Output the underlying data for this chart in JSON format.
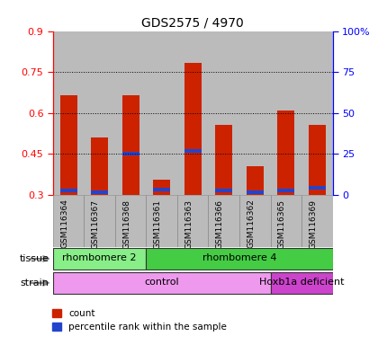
{
  "title": "GDS2575 / 4970",
  "samples": [
    "GSM116364",
    "GSM116367",
    "GSM116368",
    "GSM116361",
    "GSM116363",
    "GSM116366",
    "GSM116362",
    "GSM116365",
    "GSM116369"
  ],
  "red_values": [
    0.665,
    0.51,
    0.665,
    0.355,
    0.785,
    0.555,
    0.405,
    0.61,
    0.555
  ],
  "blue_values": [
    0.315,
    0.31,
    0.45,
    0.32,
    0.46,
    0.315,
    0.31,
    0.315,
    0.325
  ],
  "y_min": 0.3,
  "y_max": 0.9,
  "y_ticks": [
    0.3,
    0.45,
    0.6,
    0.75,
    0.9
  ],
  "y_tick_labels": [
    "0.3",
    "0.45",
    "0.6",
    "0.75",
    "0.9"
  ],
  "right_y_ticks": [
    0.3,
    0.45,
    0.6,
    0.75,
    0.9
  ],
  "right_y_tick_labels": [
    "0",
    "25",
    "50",
    "75",
    "100%"
  ],
  "tissue_groups": [
    {
      "label": "rhombomere 2",
      "start": 0,
      "end": 3,
      "color": "#88ee88"
    },
    {
      "label": "rhombomere 4",
      "start": 3,
      "end": 9,
      "color": "#44cc44"
    }
  ],
  "strain_groups": [
    {
      "label": "control",
      "start": 0,
      "end": 7,
      "color": "#ee99ee"
    },
    {
      "label": "Hoxb1a deficient",
      "start": 7,
      "end": 9,
      "color": "#cc44cc"
    }
  ],
  "legend_red_label": "count",
  "legend_blue_label": "percentile rank within the sample",
  "bar_width": 0.55,
  "red_color": "#cc2200",
  "blue_color": "#2244cc",
  "background_color": "#ffffff",
  "col_bg_color": "#bbbbbb",
  "dotted_grid_levels": [
    0.45,
    0.6,
    0.75
  ],
  "tissue_label": "tissue",
  "strain_label": "strain"
}
